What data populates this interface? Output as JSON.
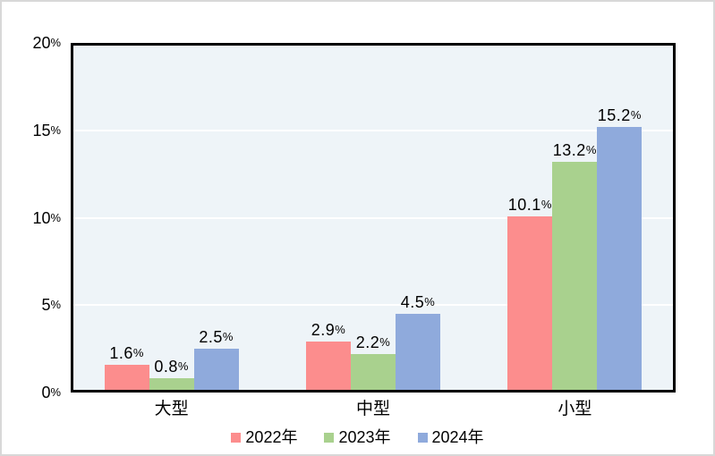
{
  "chart_data": {
    "type": "bar",
    "title": "",
    "xlabel": "",
    "ylabel": "",
    "categories": [
      "大型",
      "中型",
      "小型"
    ],
    "series": [
      {
        "name": "2022年",
        "color": "#FC8D8D",
        "values": [
          1.6,
          2.9,
          10.1
        ],
        "labels": [
          "1.6%",
          "2.9%",
          "10.1%"
        ]
      },
      {
        "name": "2023年",
        "color": "#A9D18E",
        "values": [
          0.8,
          2.2,
          13.2
        ],
        "labels": [
          "0.8%",
          "2.2%",
          "13.2%"
        ]
      },
      {
        "name": "2024年",
        "color": "#8FAADC",
        "values": [
          2.5,
          4.5,
          15.2
        ],
        "labels": [
          "2.5%",
          "4.5%",
          "15.2%"
        ]
      }
    ],
    "ylim": [
      0,
      20
    ],
    "y_ticks": [
      "0%",
      "5%",
      "10%",
      "15%",
      "20%"
    ],
    "y_tick_values": [
      0,
      5,
      10,
      15,
      20
    ],
    "grid": true,
    "data_labels": true,
    "legend_position": "bottom"
  },
  "colors": {
    "plot_background": "#EEF4F8",
    "gridline": "#FFFFFF",
    "axis_border": "#000000",
    "frame_border": "#D8D8D8",
    "page_background": "#FFFFFF",
    "series_2022": "#FC8D8D",
    "series_2023": "#A9D18E",
    "series_2024": "#8FAADC"
  }
}
